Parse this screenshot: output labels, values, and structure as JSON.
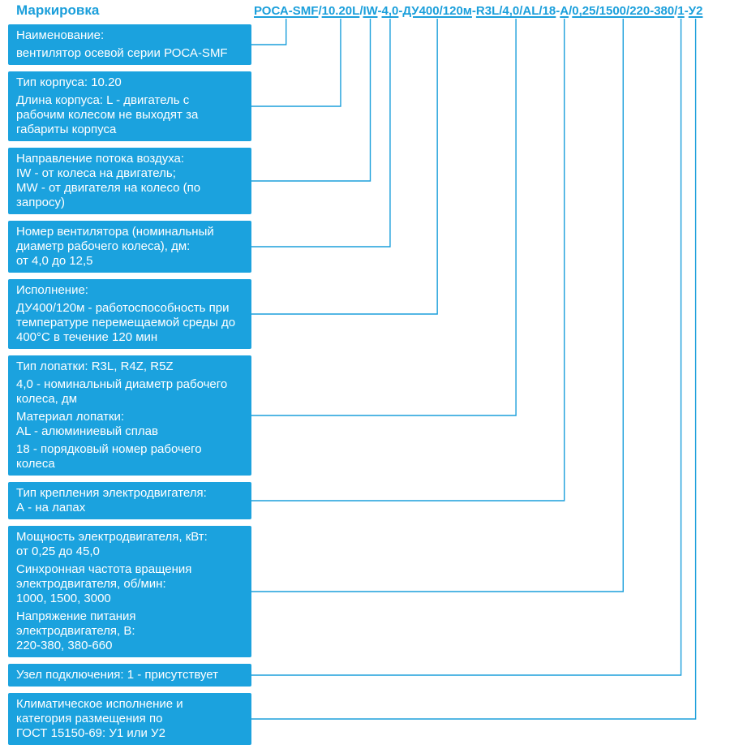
{
  "title": "Маркировка",
  "colors": {
    "accent": "#1b9fdb",
    "box_bg": "#1ba2de",
    "box_text": "#ffffff",
    "background": "#ffffff"
  },
  "code": {
    "full": "РОСА-SMF/10.20L/IW-4,0-ДУ400/120м-R3L/4,0/AL/18-А/0,25/1500/220-380/1-У2",
    "segments": [
      {
        "text": "РОСА-SMF",
        "sep": "/"
      },
      {
        "text": "10.20L",
        "sep": "/"
      },
      {
        "text": "IW",
        "sep": "-"
      },
      {
        "text": "4,0",
        "sep": "-"
      },
      {
        "text": "ДУ400/120м",
        "sep": "-"
      },
      {
        "text": "R3L/4,0/AL/18",
        "sep": "-"
      },
      {
        "text": "А",
        "sep": "/"
      },
      {
        "text": "0,25/1500/220-380",
        "sep": "/"
      },
      {
        "text": "1",
        "sep": "-"
      },
      {
        "text": "У2",
        "sep": ""
      }
    ]
  },
  "boxes": [
    {
      "id": "name",
      "paragraphs": [
        "Наименование:",
        "вентилятор осевой серии РОСА-SMF"
      ]
    },
    {
      "id": "housing-type",
      "paragraphs": [
        "Тип корпуса: 10.20",
        "Длина корпуса: L - двигатель с\nрабочим колесом не выходят за\nгабариты корпуса"
      ]
    },
    {
      "id": "airflow-direction",
      "paragraphs": [
        "Направление потока воздуха:\nIW - от колеса на двигатель;\nMW - от двигателя на колесо (по\nзапросу)"
      ]
    },
    {
      "id": "fan-number",
      "paragraphs": [
        "Номер вентилятора (номинальный\nдиаметр рабочего колеса), дм:\nот 4,0 до 12,5"
      ]
    },
    {
      "id": "design",
      "paragraphs": [
        "Исполнение:",
        "ДУ400/120м - работоспособность при\nтемпературе перемещаемой среды до\n400°С в течение 120 мин"
      ]
    },
    {
      "id": "blade-type",
      "paragraphs": [
        "Тип лопатки: R3L, R4Z, R5Z",
        "4,0 - номинальный диаметр рабочего\nколеса, дм",
        "Материал лопатки:\nAL - алюминиевый сплав",
        "18 - порядковый номер рабочего\nколеса"
      ]
    },
    {
      "id": "motor-mounting",
      "paragraphs": [
        "Тип крепления электродвигателя:\nА - на лапах"
      ]
    },
    {
      "id": "motor-power",
      "paragraphs": [
        "Мощность электродвигателя, кВт:\nот 0,25 до 45,0",
        "Синхронная частота вращения\nэлектродвигателя, об/мин:\n1000, 1500, 3000",
        "Напряжение питания\nэлектродвигателя, В:\n220-380, 380-660"
      ]
    },
    {
      "id": "connection-unit",
      "paragraphs": [
        "Узел подключения: 1 - присутствует"
      ]
    },
    {
      "id": "climatic",
      "paragraphs": [
        "Климатическое исполнение и\nкатегория размещения по\nГОСТ 15150-69: У1 или У2"
      ]
    }
  ]
}
